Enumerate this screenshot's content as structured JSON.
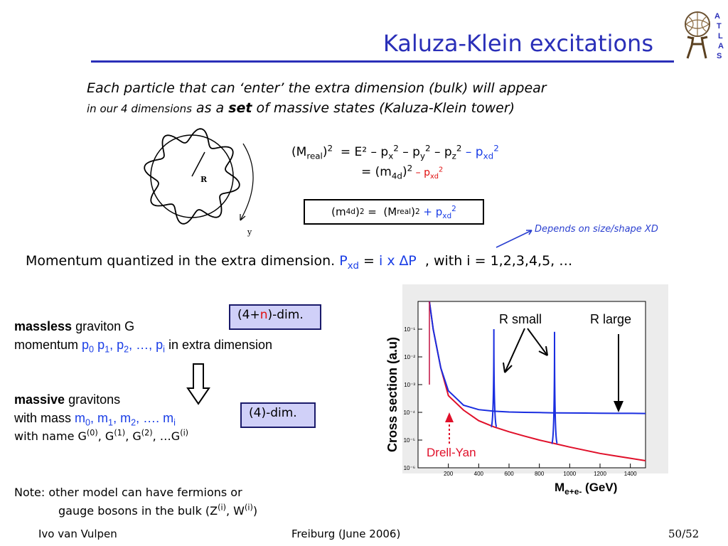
{
  "slide": {
    "title": "Kaluza-Klein excitations"
  },
  "intro": {
    "line1": "Each particle that can ‘enter’ the extra dimension (bulk) will appear",
    "line2_small": "in our 4 dimensions",
    "line2_a": " as a ",
    "line2_bold": "set",
    "line2_b": " of massive states (Kaluza-Klein tower)"
  },
  "circle_diagram": {
    "radius_label": "R",
    "axis_label": "y"
  },
  "equations": {
    "eq1": {
      "lhs_M": "(M",
      "lhs_sub": "real",
      "lhs_close": ")",
      "lhs_sup": "2",
      "rhs_text": "= E² – p",
      "px_sub": "x",
      "px_sup": "2",
      "minus_py": " – p",
      "py_sub": "y",
      "py_sup": "2",
      "minus_pz": " – p",
      "pz_sub": "z",
      "pz_sup": "2",
      "minus_pxd": " – p",
      "pxd_sub": "xd",
      "pxd_sup": "2"
    },
    "eq2": {
      "text": "= (m",
      "m_sub": "4d",
      "close": ")",
      "sup": "2",
      "minus_pxd": " – p",
      "pxd_sub": "xd",
      "pxd_sup": "2"
    },
    "boxed": {
      "m": "(m",
      "m_sub": "4d",
      "m_close": ")",
      "m_sup": "2",
      "eq": " =  (M",
      "M_sub": "real",
      "M_close": ")",
      "M_sup": "2",
      "plus": " + p",
      "p_sub": "xd",
      "p_sup": "2"
    }
  },
  "annotation": {
    "depends": "Depends on size/shape XD"
  },
  "momentum": {
    "text": "Momentum quantized in the extra dimension.",
    "p": "P",
    "p_sub": "xd",
    "eq": " = ",
    "ix": "i x ∆P",
    "rest": "  , with i = 1,2,3,4,5, …"
  },
  "tag_boxes": {
    "four_plus_n_a": "(4+",
    "four_plus_n_n": "n",
    "four_plus_n_b": ")-dim.",
    "four": "(4)-dim."
  },
  "massless": {
    "bold": "massless",
    "rest1": " graviton G",
    "momentum_label": "momentum ",
    "p0": "p",
    "p0_sub": "0",
    "p1": " p",
    "p1_sub": "1",
    "p2": ", p",
    "p2_sub": "2",
    "dots": ", …, p",
    "pi_sub": "i",
    "rest2": " in extra dimension"
  },
  "massive": {
    "bold": "massive",
    "rest1": " gravitons",
    "mass_label": "with mass ",
    "m0": "m",
    "m0_sub": "0",
    "m1": ", m",
    "m1_sub": "1",
    "m2": ", m",
    "m2_sub": "2",
    "mdots": ", …. m",
    "mi_sub": "i",
    "name_label": "with name G",
    "g0_sup": "(0)",
    "g1": ", G",
    "g1_sup": "(1)",
    "g2": ", G",
    "g2_sup": "(2)",
    "gdots": ", …G",
    "gi_sup": "(i)"
  },
  "note": {
    "line1": "Note: other model can have fermions or",
    "line2_a": "gauge bosons in the bulk (Z",
    "z_sup": "(i)",
    "line2_b": ", W",
    "w_sup": "(i)",
    "line2_c": ")"
  },
  "footer": {
    "author": "Ivo van Vulpen",
    "event": "Freiburg (June 2006)",
    "page": "50/52"
  },
  "chart_data": {
    "type": "line",
    "title": "",
    "xlabel": "M",
    "xlabel_sub": "e+e-",
    "xlabel_unit": " (GeV)",
    "ylabel": "Cross section (a.u)",
    "log_y": true,
    "xlim": [
      0,
      1500
    ],
    "ylim": [
      1e-06,
      1
    ],
    "x_ticks": [
      "200",
      "400",
      "600",
      "800",
      "1000",
      "1200",
      "1400"
    ],
    "y_ticks": [
      "10⁻¹",
      "10⁻²",
      "10⁻³",
      "10⁻⁴",
      "10⁻⁵",
      "10⁻⁶"
    ],
    "series": [
      {
        "color": "#e0102a",
        "x": [
          75,
          100,
          150,
          200,
          300,
          400,
          500,
          600,
          700,
          800,
          900,
          1000,
          1100,
          1200,
          1300,
          1400,
          1500
        ],
        "y": [
          1.0,
          0.1,
          0.004,
          0.0004,
          0.00012,
          5e-05,
          3e-05,
          2e-05,
          1.4e-05,
          1e-05,
          7.5e-06,
          5.6e-06,
          4.3e-06,
          3.3e-06,
          2.7e-06,
          2.2e-06,
          1.8e-06
        ]
      },
      {
        "color": "#1a2ee0",
        "x": [
          75,
          100,
          150,
          200,
          300,
          400,
          500,
          600,
          700,
          800,
          900,
          1000,
          1100,
          1200,
          1300,
          1400,
          1500
        ],
        "y": [
          1.0,
          0.1,
          0.004,
          0.0006,
          0.00018,
          0.000125,
          0.00011,
          0.000103,
          0.0001,
          9.8e-05,
          9.6e-05,
          9.5e-05,
          9.4e-05,
          9.3e-05,
          9.2e-05,
          9.2e-05,
          9.1e-05
        ]
      }
    ],
    "resonances": [
      {
        "x": 500,
        "peak": 0.1
      },
      {
        "x": 900,
        "peak": 0.08
      }
    ],
    "annotations": {
      "r_small": "R small",
      "r_large": "R large",
      "drell_yan": "Drell-Yan"
    }
  }
}
